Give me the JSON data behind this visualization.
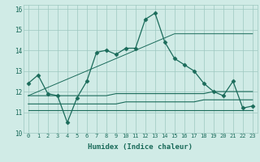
{
  "xlabel": "Humidex (Indice chaleur)",
  "x": [
    0,
    1,
    2,
    3,
    4,
    5,
    6,
    7,
    8,
    9,
    10,
    11,
    12,
    13,
    14,
    15,
    16,
    17,
    18,
    19,
    20,
    21,
    22,
    23
  ],
  "y_main": [
    12.4,
    12.8,
    11.9,
    11.8,
    10.5,
    11.7,
    12.5,
    13.9,
    14.0,
    13.8,
    14.1,
    14.1,
    15.5,
    15.8,
    14.4,
    13.6,
    13.3,
    13.0,
    12.4,
    12.0,
    11.8,
    12.5,
    11.2,
    11.3
  ],
  "y_diag": [
    11.8,
    12.0,
    12.2,
    12.4,
    12.6,
    12.8,
    13.0,
    13.2,
    13.4,
    13.6,
    13.8,
    14.0,
    14.2,
    14.4,
    14.6,
    14.8,
    14.8,
    14.8,
    14.8,
    14.8,
    14.8,
    14.8,
    14.8,
    14.8
  ],
  "y_line1": [
    11.8,
    11.8,
    11.8,
    11.8,
    11.8,
    11.8,
    11.8,
    11.8,
    11.8,
    11.9,
    11.9,
    11.9,
    11.9,
    11.9,
    11.9,
    11.9,
    11.9,
    11.9,
    11.9,
    12.0,
    12.0,
    12.0,
    12.0,
    12.0
  ],
  "y_line2": [
    11.4,
    11.4,
    11.4,
    11.4,
    11.4,
    11.4,
    11.4,
    11.4,
    11.4,
    11.4,
    11.5,
    11.5,
    11.5,
    11.5,
    11.5,
    11.5,
    11.5,
    11.5,
    11.6,
    11.6,
    11.6,
    11.6,
    11.6,
    11.6
  ],
  "y_line3": [
    11.1,
    11.1,
    11.1,
    11.1,
    11.1,
    11.1,
    11.1,
    11.1,
    11.1,
    11.1,
    11.1,
    11.1,
    11.1,
    11.1,
    11.1,
    11.1,
    11.1,
    11.1,
    11.1,
    11.1,
    11.1,
    11.1,
    11.1,
    11.1
  ],
  "ylim": [
    10,
    16.2
  ],
  "xlim": [
    -0.5,
    23.5
  ],
  "yticks": [
    10,
    11,
    12,
    13,
    14,
    15,
    16
  ],
  "xticks": [
    0,
    1,
    2,
    3,
    4,
    5,
    6,
    7,
    8,
    9,
    10,
    11,
    12,
    13,
    14,
    15,
    16,
    17,
    18,
    19,
    20,
    21,
    22,
    23
  ],
  "line_color": "#1a6b5a",
  "bg_color": "#d0ebe6",
  "grid_color": "#9dc8c0"
}
